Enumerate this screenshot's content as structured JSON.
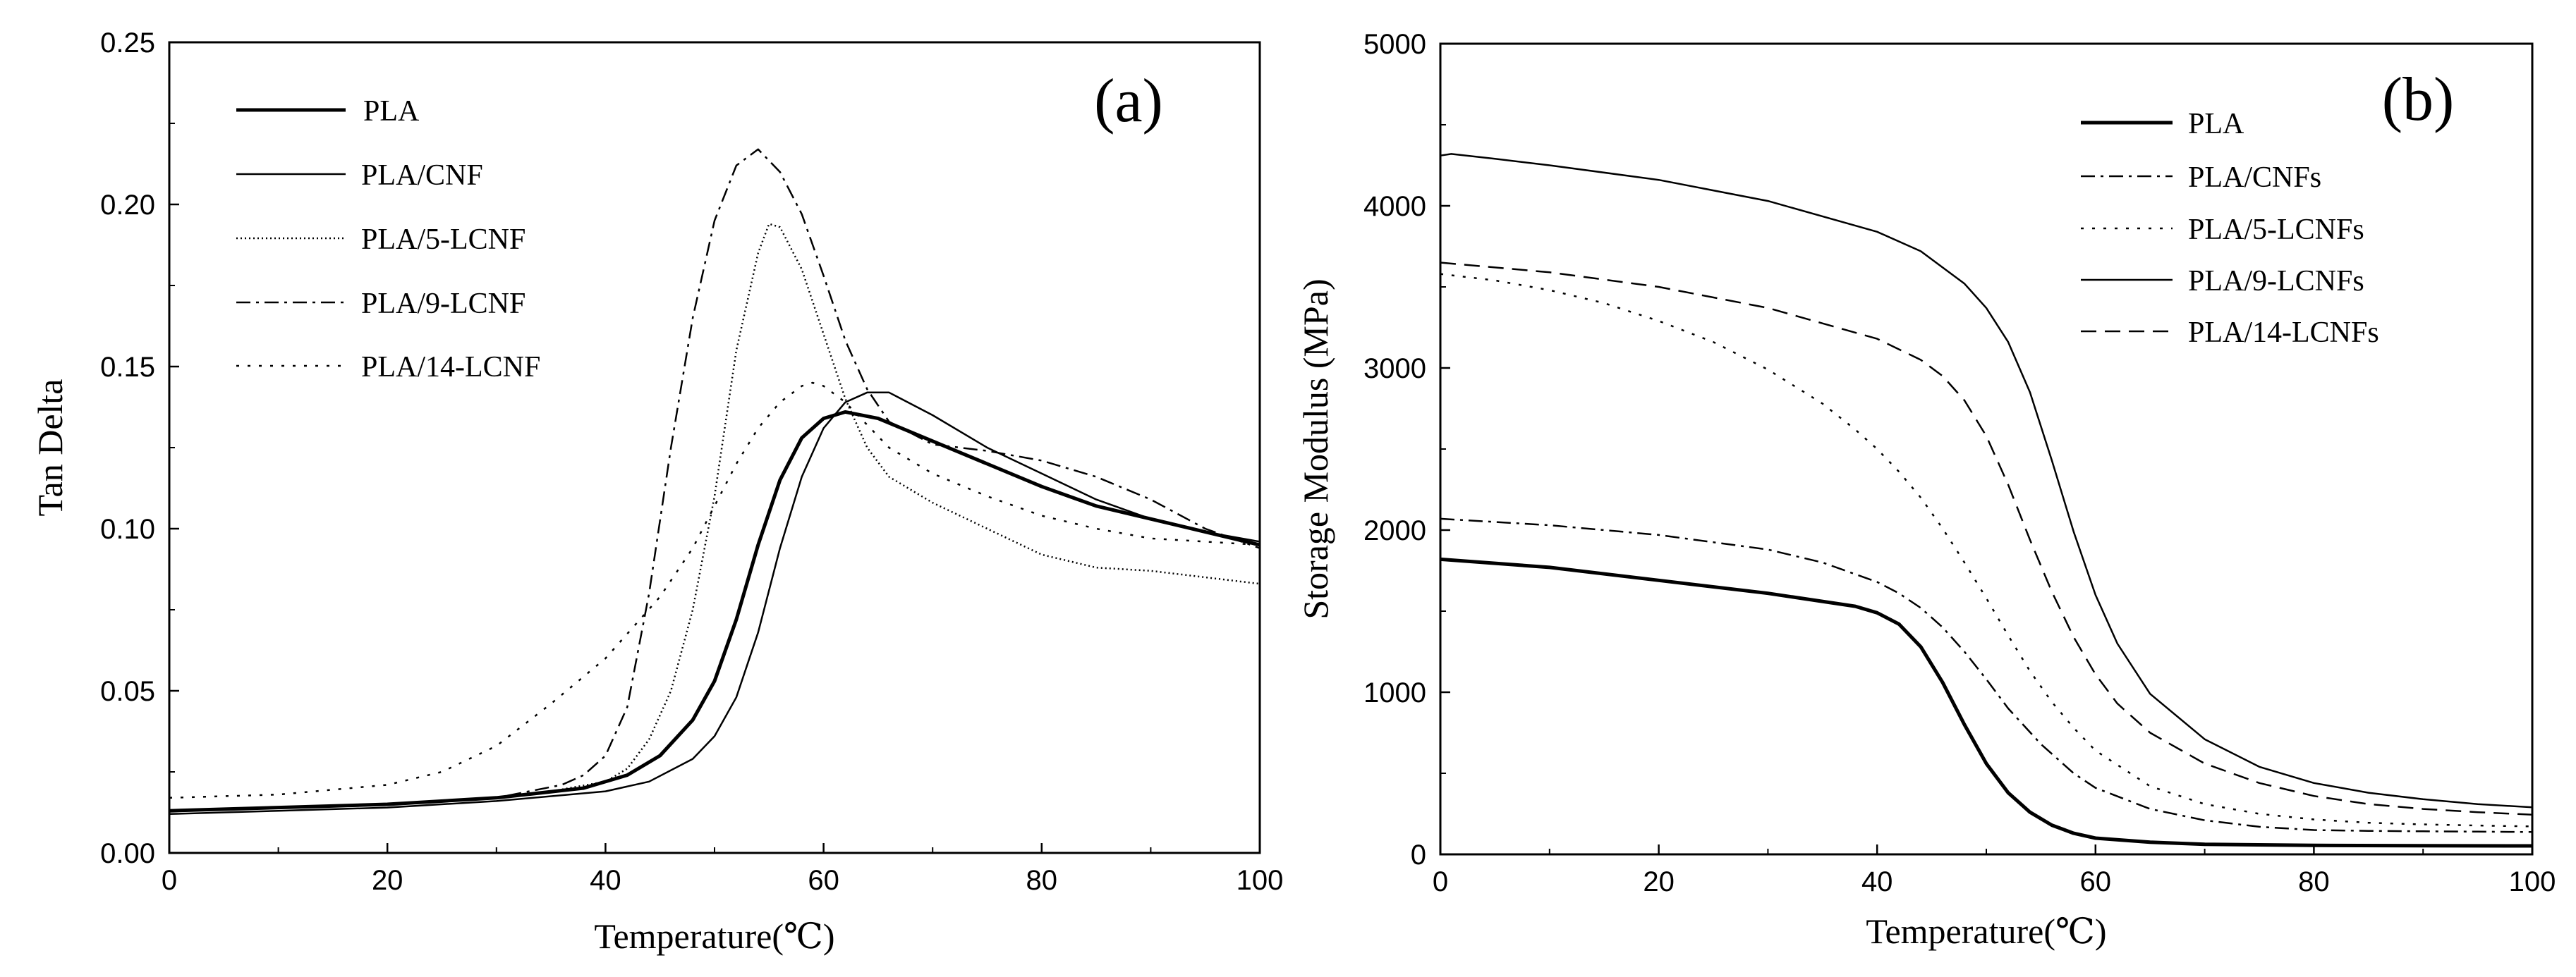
{
  "chart_data": [
    {
      "type": "line",
      "panel_label": "(a)",
      "xlabel": "Temperature(℃)",
      "ylabel": "Tan Delta",
      "xlim": [
        0,
        100
      ],
      "ylim": [
        0,
        0.25
      ],
      "x_ticks": [
        0,
        20,
        40,
        60,
        80,
        100
      ],
      "y_ticks": [
        0,
        0.05,
        0.1,
        0.15,
        0.2,
        0.25
      ],
      "x_tick_labels": [
        "0",
        "20",
        "40",
        "60",
        "80",
        "100"
      ],
      "y_tick_labels": [
        "0.00",
        "0.05",
        "0.10",
        "0.15",
        "0.20",
        "0.25"
      ],
      "legend_position": "top-left",
      "series": [
        {
          "name": "PLA",
          "style": "solid-thick",
          "x": [
            0,
            10,
            20,
            30,
            38,
            42,
            45,
            48,
            50,
            52,
            54,
            56,
            58,
            60,
            62,
            65,
            70,
            75,
            80,
            85,
            90,
            95,
            100
          ],
          "y": [
            0.013,
            0.014,
            0.015,
            0.017,
            0.02,
            0.024,
            0.03,
            0.041,
            0.053,
            0.072,
            0.095,
            0.115,
            0.128,
            0.134,
            0.136,
            0.134,
            0.127,
            0.12,
            0.113,
            0.107,
            0.103,
            0.099,
            0.095
          ]
        },
        {
          "name": "PLA/CNF",
          "style": "solid-thin",
          "x": [
            0,
            10,
            20,
            30,
            40,
            44,
            48,
            50,
            52,
            54,
            56,
            58,
            60,
            62,
            64,
            66,
            70,
            75,
            80,
            85,
            90,
            95,
            100
          ],
          "y": [
            0.012,
            0.013,
            0.014,
            0.016,
            0.019,
            0.022,
            0.029,
            0.036,
            0.048,
            0.068,
            0.094,
            0.116,
            0.131,
            0.139,
            0.142,
            0.142,
            0.135,
            0.125,
            0.117,
            0.109,
            0.103,
            0.099,
            0.096
          ]
        },
        {
          "name": "PLA/5-LCNF",
          "style": "dotted-dense",
          "x": [
            0,
            10,
            20,
            30,
            35,
            40,
            42,
            44,
            46,
            48,
            50,
            52,
            54,
            55,
            56,
            58,
            60,
            62,
            64,
            66,
            70,
            75,
            80,
            85,
            90,
            95,
            100
          ],
          "y": [
            0.013,
            0.014,
            0.015,
            0.017,
            0.019,
            0.022,
            0.026,
            0.035,
            0.05,
            0.075,
            0.11,
            0.155,
            0.185,
            0.194,
            0.193,
            0.18,
            0.16,
            0.14,
            0.125,
            0.116,
            0.108,
            0.1,
            0.092,
            0.088,
            0.087,
            0.085,
            0.083
          ]
        },
        {
          "name": "PLA/9-LCNF",
          "style": "dash-dot",
          "x": [
            0,
            10,
            20,
            30,
            36,
            38,
            40,
            42,
            44,
            46,
            48,
            50,
            52,
            54,
            56,
            58,
            60,
            62,
            64,
            66,
            70,
            75,
            80,
            85,
            90,
            95,
            100
          ],
          "y": [
            0.013,
            0.014,
            0.015,
            0.017,
            0.021,
            0.024,
            0.03,
            0.045,
            0.08,
            0.125,
            0.165,
            0.195,
            0.212,
            0.217,
            0.21,
            0.197,
            0.178,
            0.158,
            0.143,
            0.133,
            0.126,
            0.124,
            0.121,
            0.116,
            0.109,
            0.1,
            0.094
          ]
        },
        {
          "name": "PLA/14-LCNF",
          "style": "dotted-sparse",
          "x": [
            0,
            10,
            20,
            25,
            30,
            35,
            40,
            45,
            48,
            50,
            52,
            54,
            56,
            58,
            59,
            60,
            62,
            64,
            66,
            70,
            75,
            80,
            85,
            90,
            95,
            100
          ],
          "y": [
            0.017,
            0.018,
            0.021,
            0.025,
            0.033,
            0.046,
            0.06,
            0.079,
            0.094,
            0.107,
            0.12,
            0.131,
            0.139,
            0.144,
            0.145,
            0.144,
            0.139,
            0.132,
            0.125,
            0.117,
            0.11,
            0.104,
            0.1,
            0.097,
            0.096,
            0.095
          ]
        }
      ]
    },
    {
      "type": "line",
      "panel_label": "(b)",
      "xlabel": "Temperature(℃)",
      "ylabel": "Storage Modulus (MPa)",
      "xlim": [
        0,
        100
      ],
      "ylim": [
        0,
        5000
      ],
      "x_ticks": [
        0,
        20,
        40,
        60,
        80,
        100
      ],
      "y_ticks": [
        0,
        1000,
        2000,
        3000,
        4000,
        5000
      ],
      "x_tick_labels": [
        "0",
        "20",
        "40",
        "60",
        "80",
        "100"
      ],
      "y_tick_labels": [
        "0",
        "1000",
        "2000",
        "3000",
        "4000",
        "5000"
      ],
      "legend_position": "top-right",
      "series": [
        {
          "name": "PLA",
          "style": "solid-thick",
          "x": [
            0,
            10,
            20,
            30,
            38,
            40,
            42,
            44,
            46,
            48,
            50,
            52,
            54,
            56,
            58,
            60,
            65,
            70,
            80,
            90,
            100
          ],
          "y": [
            1820,
            1770,
            1690,
            1610,
            1530,
            1490,
            1420,
            1280,
            1060,
            800,
            560,
            380,
            260,
            180,
            130,
            100,
            75,
            62,
            55,
            53,
            52
          ]
        },
        {
          "name": "PLA/CNFs",
          "style": "dash-dot",
          "x": [
            0,
            10,
            20,
            30,
            35,
            40,
            42,
            44,
            46,
            48,
            50,
            52,
            55,
            58,
            60,
            65,
            70,
            75,
            80,
            85,
            90,
            95,
            100
          ],
          "y": [
            2070,
            2030,
            1970,
            1880,
            1800,
            1680,
            1610,
            1520,
            1400,
            1250,
            1080,
            900,
            680,
            500,
            410,
            280,
            210,
            170,
            150,
            145,
            142,
            140,
            138
          ]
        },
        {
          "name": "PLA/5-LCNFs",
          "style": "dotted-sparse",
          "x": [
            0,
            5,
            10,
            15,
            20,
            25,
            30,
            35,
            38,
            40,
            42,
            44,
            46,
            48,
            50,
            52,
            54,
            56,
            58,
            60,
            65,
            70,
            75,
            80,
            85,
            90,
            95,
            100
          ],
          "y": [
            3580,
            3540,
            3480,
            3400,
            3290,
            3160,
            2990,
            2780,
            2620,
            2500,
            2360,
            2200,
            2010,
            1800,
            1580,
            1350,
            1130,
            940,
            780,
            640,
            420,
            310,
            250,
            215,
            195,
            185,
            178,
            172
          ]
        },
        {
          "name": "PLA/9-LCNFs",
          "style": "solid-thin",
          "x": [
            0,
            1,
            5,
            10,
            20,
            30,
            40,
            44,
            48,
            50,
            52,
            54,
            56,
            58,
            60,
            62,
            65,
            70,
            75,
            80,
            85,
            90,
            95,
            100
          ],
          "y": [
            4310,
            4320,
            4290,
            4250,
            4160,
            4030,
            3840,
            3720,
            3520,
            3370,
            3160,
            2850,
            2430,
            1990,
            1600,
            1300,
            990,
            710,
            540,
            440,
            380,
            340,
            310,
            290
          ]
        },
        {
          "name": "PLA/14-LCNFs",
          "style": "dashed",
          "x": [
            0,
            10,
            20,
            30,
            40,
            44,
            46,
            48,
            50,
            52,
            54,
            56,
            58,
            60,
            62,
            65,
            70,
            75,
            80,
            85,
            90,
            95,
            100
          ],
          "y": [
            3650,
            3590,
            3500,
            3370,
            3180,
            3050,
            2950,
            2800,
            2580,
            2280,
            1940,
            1620,
            1340,
            1110,
            930,
            750,
            560,
            440,
            360,
            310,
            280,
            260,
            245
          ]
        }
      ]
    }
  ]
}
